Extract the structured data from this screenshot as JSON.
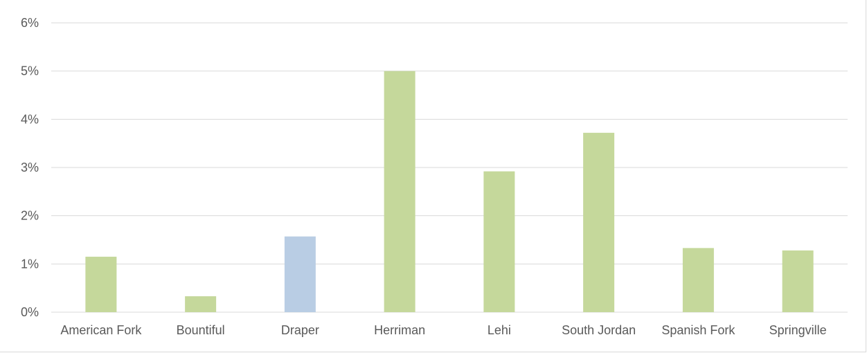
{
  "chart_data": {
    "type": "bar",
    "categories": [
      "American Fork",
      "Bountiful",
      "Draper",
      "Herriman",
      "Lehi",
      "South Jordan",
      "Spanish Fork",
      "Springville"
    ],
    "values": [
      1.15,
      0.33,
      1.57,
      5.0,
      2.92,
      3.72,
      1.33,
      1.28
    ],
    "bar_colors": [
      "#c5d89b",
      "#c5d89b",
      "#b9cde4",
      "#c5d89b",
      "#c5d89b",
      "#c5d89b",
      "#c5d89b",
      "#c5d89b"
    ],
    "ylim": [
      0,
      6
    ],
    "yticks": [
      0,
      1,
      2,
      3,
      4,
      5,
      6
    ],
    "ytick_labels": [
      "0%",
      "1%",
      "2%",
      "3%",
      "4%",
      "5%",
      "6%"
    ],
    "grid": true,
    "legend": "none",
    "colors": {
      "gridline": "#d9d9d9",
      "axis_text": "#595959"
    }
  }
}
